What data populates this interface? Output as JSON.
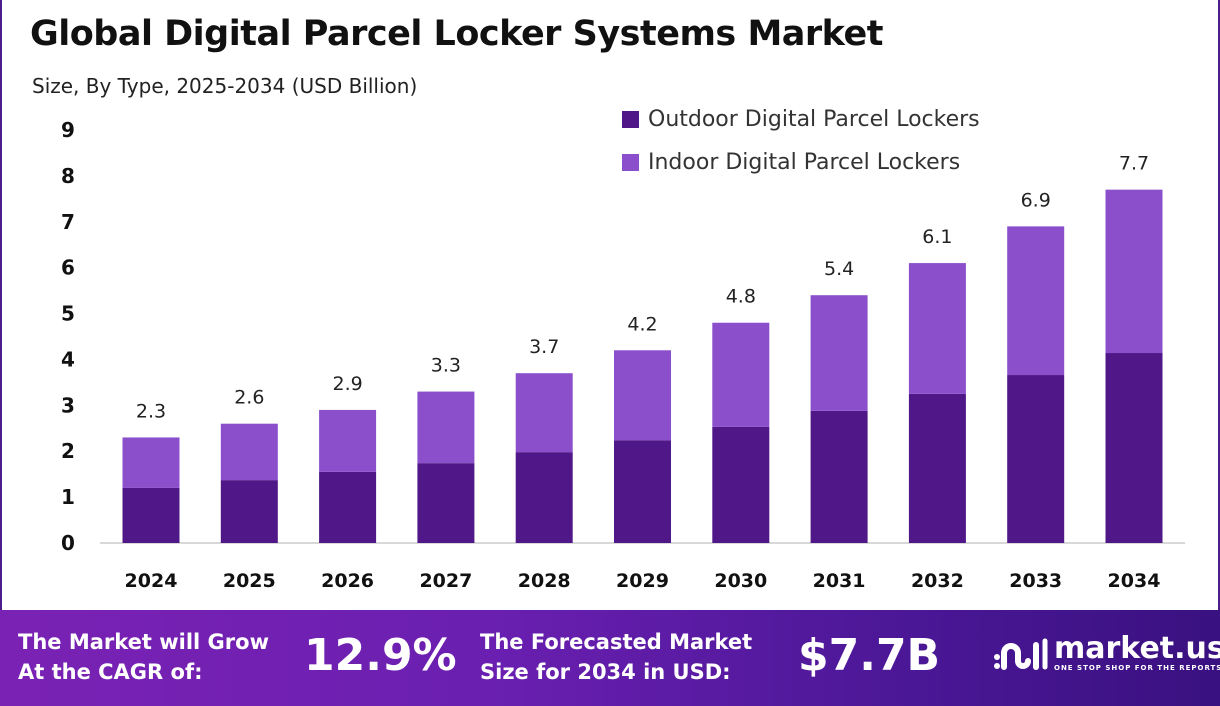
{
  "chart_data": {
    "type": "bar",
    "stacked": true,
    "title": "Global Digital Parcel Locker Systems Market",
    "subtitle": "Size, By Type, 2025-2034 (USD Billion)",
    "categories": [
      "2024",
      "2025",
      "2026",
      "2027",
      "2028",
      "2029",
      "2030",
      "2031",
      "2032",
      "2033",
      "2034"
    ],
    "series": [
      {
        "name": "Outdoor Digital Parcel Lockers",
        "color": "#4f1787",
        "values": [
          1.2,
          1.37,
          1.55,
          1.74,
          1.98,
          2.24,
          2.53,
          2.88,
          3.25,
          3.66,
          4.14
        ]
      },
      {
        "name": "Indoor Digital Parcel Lockers",
        "color": "#8b4fcc",
        "values": [
          1.1,
          1.23,
          1.35,
          1.56,
          1.72,
          1.96,
          2.27,
          2.52,
          2.85,
          3.24,
          3.56
        ]
      }
    ],
    "totals": [
      "2.3",
      "2.6",
      "2.9",
      "3.3",
      "3.7",
      "4.2",
      "4.8",
      "5.4",
      "6.1",
      "6.9",
      "7.7"
    ],
    "yticks": [
      "0",
      "1",
      "2",
      "3",
      "4",
      "5",
      "6",
      "7",
      "8",
      "9"
    ],
    "ylim": [
      0,
      9
    ],
    "grid": false,
    "legend_position": "top-right"
  },
  "footer": {
    "cagr_label_line1": "The Market will Grow",
    "cagr_label_line2": "At the CAGR of:",
    "cagr_value": "12.9%",
    "forecast_label_line1": "The Forecasted Market",
    "forecast_label_line2": "Size for 2034 in USD:",
    "forecast_value": "$7.7B",
    "logo_text": "market.us",
    "logo_tagline": "ONE STOP SHOP FOR THE REPORTS"
  }
}
